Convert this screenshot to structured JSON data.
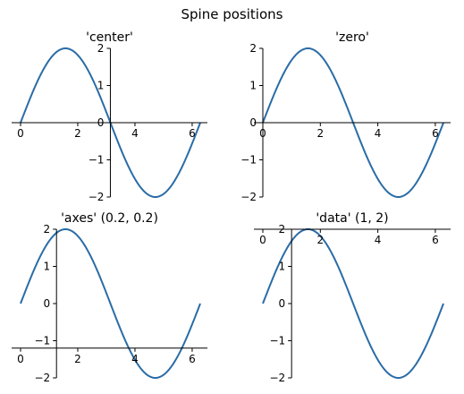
{
  "figure": {
    "suptitle": "Spine positions"
  },
  "chart_data": [
    {
      "type": "line",
      "title": "'center'",
      "spine_position": "center",
      "xlim": [
        0,
        6.283
      ],
      "ylim": [
        -2,
        2
      ],
      "xticks": [
        0,
        2,
        4,
        6
      ],
      "yticks": [
        -2,
        -1,
        0,
        1,
        2
      ],
      "xtick_labels": [
        "0",
        "2",
        "4",
        "6"
      ],
      "ytick_labels": [
        "−2",
        "−1",
        "0",
        "1",
        "2"
      ],
      "series": [
        {
          "function": "2*sin(x)",
          "x_range": [
            0,
            6.283
          ],
          "color": "#2a6ca6"
        }
      ],
      "spine_x_at_y": 0,
      "spine_y_at_x": 3.14
    },
    {
      "type": "line",
      "title": "'zero'",
      "spine_position": "zero",
      "xlim": [
        0,
        6.283
      ],
      "ylim": [
        -2,
        2
      ],
      "xticks": [
        0,
        2,
        4,
        6
      ],
      "yticks": [
        -2,
        -1,
        0,
        1,
        2
      ],
      "xtick_labels": [
        "0",
        "2",
        "4",
        "6"
      ],
      "ytick_labels": [
        "−2",
        "−1",
        "0",
        "1",
        "2"
      ],
      "series": [
        {
          "function": "2*sin(x)",
          "x_range": [
            0,
            6.283
          ],
          "color": "#2a6ca6"
        }
      ],
      "spine_x_at_y": 0,
      "spine_y_at_x": 0
    },
    {
      "type": "line",
      "title": "'axes' (0.2, 0.2)",
      "spine_position": "axes 0.2",
      "xlim": [
        0,
        6.283
      ],
      "ylim": [
        -2,
        2
      ],
      "xticks": [
        0,
        2,
        4,
        6
      ],
      "yticks": [
        -2,
        -1,
        0,
        1,
        2
      ],
      "xtick_labels": [
        "0",
        "2",
        "4",
        "6"
      ],
      "ytick_labels": [
        "−2",
        "−1",
        "0",
        "1",
        "2"
      ],
      "series": [
        {
          "function": "2*sin(x)",
          "x_range": [
            0,
            6.283
          ],
          "color": "#2a6ca6"
        }
      ],
      "spine_x_at_y": -1.2,
      "spine_y_at_x": 1.2566
    },
    {
      "type": "line",
      "title": "'data' (1, 2)",
      "spine_position": "data",
      "xlim": [
        0,
        6.283
      ],
      "ylim": [
        -2,
        2
      ],
      "xticks": [
        0,
        2,
        4,
        6
      ],
      "yticks": [
        -2,
        -1,
        0,
        1,
        2
      ],
      "xtick_labels": [
        "0",
        "2",
        "4",
        "6"
      ],
      "ytick_labels": [
        "−2",
        "−1",
        "0",
        "1",
        "2"
      ],
      "series": [
        {
          "function": "2*sin(x)",
          "x_range": [
            0,
            6.283
          ],
          "color": "#2a6ca6"
        }
      ],
      "spine_x_at_y": 2,
      "spine_y_at_x": 1
    }
  ]
}
